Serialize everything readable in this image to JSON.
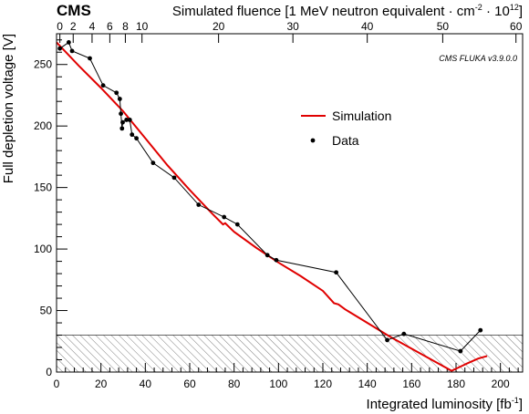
{
  "chart_data": {
    "type": "line",
    "cms_label": "CMS",
    "annotation": "CMS FLUKA v3.9.0.0",
    "xlabel": {
      "text": "Integrated luminosity [fb",
      "sup": "-1",
      "tail": "]"
    },
    "ylabel": "Full depletion voltage [V]",
    "top_axis_label": {
      "text": "Simulated fluence [1 MeV neutron equivalent · cm",
      "sup1": "-2",
      "mid": " · 10",
      "sup2": "12",
      "tail": "]"
    },
    "xlim": [
      0,
      210
    ],
    "ylim": [
      0,
      275
    ],
    "x_ticks": [
      0,
      20,
      40,
      60,
      80,
      100,
      120,
      140,
      160,
      180,
      200
    ],
    "y_ticks": [
      0,
      50,
      100,
      150,
      200,
      250
    ],
    "top_axis": {
      "ticks": [
        {
          "label": "0",
          "lumi": 1.5
        },
        {
          "label": "2",
          "lumi": 7.5
        },
        {
          "label": "4",
          "lumi": 16
        },
        {
          "label": "6",
          "lumi": 24
        },
        {
          "label": "8",
          "lumi": 31
        },
        {
          "label": "10",
          "lumi": 38.5
        },
        {
          "label": "20",
          "lumi": 73
        },
        {
          "label": "30",
          "lumi": 106.5
        },
        {
          "label": "40",
          "lumi": 140
        },
        {
          "label": "50",
          "lumi": 174
        },
        {
          "label": "60",
          "lumi": 207
        }
      ]
    },
    "hatched_band": {
      "y_min": 0,
      "y_max": 30
    },
    "legend": {
      "position": "top-right"
    },
    "series": [
      {
        "name": "Simulation",
        "kind": "line",
        "color": "#e00000",
        "x": [
          0,
          10,
          20,
          30,
          40,
          50,
          60,
          70,
          75,
          76,
          80,
          90,
          100,
          110,
          120,
          125,
          127,
          130,
          140,
          150,
          160,
          170,
          178,
          185,
          190,
          194
        ],
        "y": [
          268,
          249,
          231,
          212,
          190,
          168,
          148,
          129,
          120,
          121,
          114,
          101,
          89,
          78,
          66,
          56,
          55,
          51,
          40,
          29,
          19,
          9,
          1,
          7,
          11,
          13
        ]
      },
      {
        "name": "Data",
        "kind": "points",
        "color": "#000000",
        "x": [
          1.5,
          5.5,
          7,
          15,
          21,
          27,
          28.5,
          29,
          29.5,
          29.8,
          31.5,
          33,
          34,
          36,
          43.5,
          53,
          64,
          75.5,
          81.5,
          95,
          99,
          126,
          149,
          156.5,
          182,
          191
        ],
        "y": [
          263,
          268,
          261,
          255,
          233,
          227,
          222,
          210,
          198,
          203,
          205,
          205,
          193,
          190,
          170,
          158,
          136,
          126,
          120,
          95,
          91,
          81,
          26,
          31,
          17,
          34
        ]
      }
    ]
  }
}
